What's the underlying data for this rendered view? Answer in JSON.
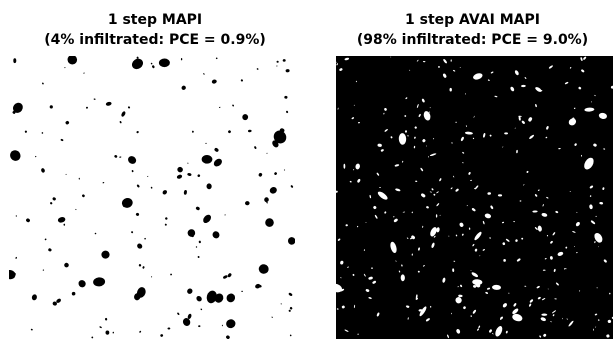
{
  "panels": [
    {
      "title": "1 step MAPI",
      "subtitle": "(4% infiltrated: PCE = 0.9%)",
      "background_color": "#ffffff",
      "particle_color": "#000000"
    },
    {
      "title": "1 step AVAI MAPI",
      "subtitle": "(98% infiltrated: PCE = 9.0%)",
      "background_color": "#000000",
      "particle_color": "#ffffff"
    }
  ]
}
